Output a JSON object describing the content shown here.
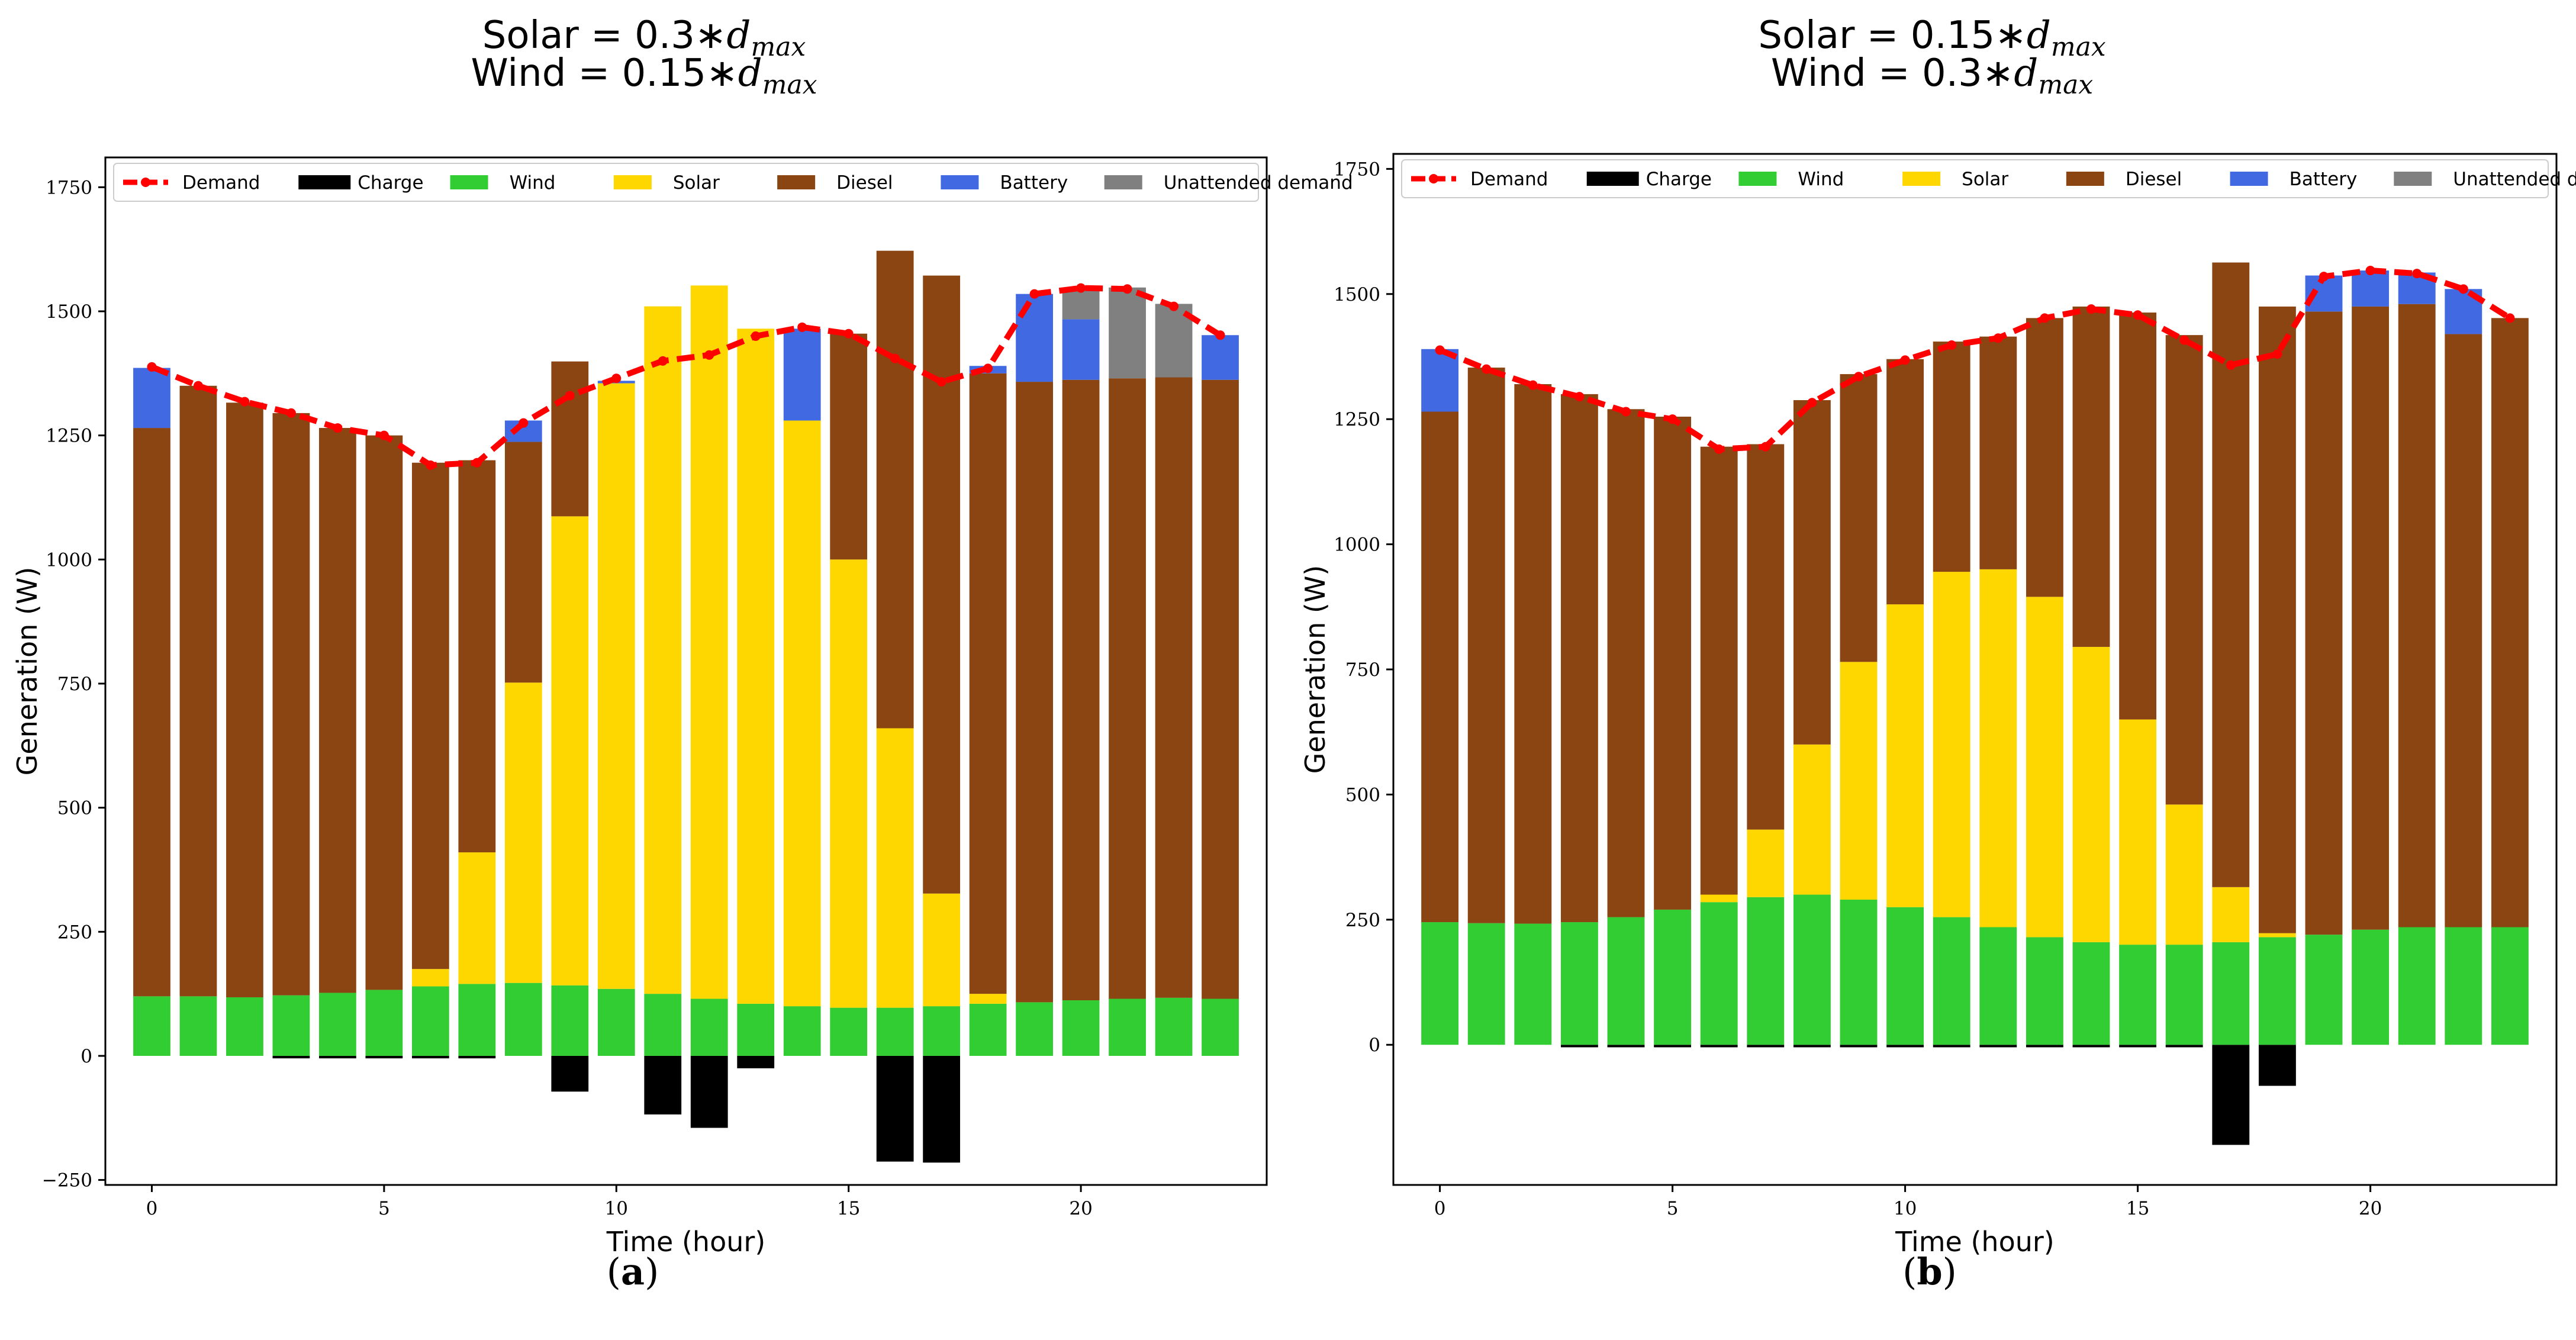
{
  "chart_data": [
    {
      "type": "bar",
      "stacked": true,
      "caption": "a",
      "title_lines": [
        "Solar = 0.3*d_max",
        "Wind = 0.15*d_max"
      ],
      "title_parts": [
        {
          "prefix": "Solar = 0.3∗",
          "sym": "d",
          "sub": "max"
        },
        {
          "prefix": "Wind = 0.15∗",
          "sym": "d",
          "sub": "max"
        }
      ],
      "xlabel": "Time (hour)",
      "ylabel": "Generation (W)",
      "xlim": [
        -1,
        24
      ],
      "ylim": [
        -260,
        1810
      ],
      "xticks": [
        0,
        5,
        10,
        15,
        20
      ],
      "yticks": [
        -250,
        0,
        250,
        500,
        750,
        1000,
        1250,
        1500,
        1750
      ],
      "x": [
        0,
        1,
        2,
        3,
        4,
        5,
        6,
        7,
        8,
        9,
        10,
        11,
        12,
        13,
        14,
        15,
        16,
        17,
        18,
        19,
        20,
        21,
        22,
        23
      ],
      "legend": {
        "position": "top",
        "ncol": 7
      },
      "series": [
        {
          "name": "Demand",
          "kind": "line",
          "color": "#ff0000",
          "values": [
            1388,
            1350,
            1318,
            1295,
            1265,
            1250,
            1190,
            1195,
            1275,
            1330,
            1365,
            1400,
            1412,
            1450,
            1468,
            1455,
            1405,
            1358,
            1385,
            1535,
            1547,
            1545,
            1510,
            1452
          ]
        },
        {
          "name": "Charge",
          "kind": "bar",
          "color": "#000000",
          "values": [
            0,
            0,
            0,
            -5,
            -5,
            -5,
            -5,
            -5,
            0,
            -72,
            0,
            -118,
            -145,
            -25,
            0,
            0,
            -213,
            -215,
            0,
            0,
            0,
            0,
            0,
            0
          ]
        },
        {
          "name": "Wind",
          "kind": "bar",
          "color": "#32cd32",
          "values": [
            120,
            120,
            118,
            122,
            127,
            133,
            140,
            145,
            147,
            142,
            135,
            125,
            115,
            105,
            100,
            97,
            97,
            100,
            105,
            108,
            112,
            115,
            117,
            115
          ]
        },
        {
          "name": "Solar",
          "kind": "bar",
          "color": "#ffd700",
          "values": [
            0,
            0,
            0,
            0,
            0,
            0,
            35,
            265,
            605,
            945,
            1220,
            1385,
            1437,
            1360,
            1180,
            903,
            563,
            227,
            20,
            0,
            0,
            0,
            0,
            0
          ]
        },
        {
          "name": "Diesel",
          "kind": "bar",
          "color": "#8b4513",
          "values": [
            1145,
            1230,
            1198,
            1173,
            1138,
            1117,
            1020,
            790,
            485,
            312,
            0,
            0,
            0,
            0,
            0,
            455,
            962,
            1245,
            1250,
            1250,
            1250,
            1250,
            1250,
            1247
          ]
        },
        {
          "name": "Battery",
          "kind": "bar",
          "color": "#4169e1",
          "values": [
            121,
            0,
            0,
            0,
            0,
            0,
            0,
            0,
            43,
            0,
            5,
            0,
            0,
            0,
            185,
            0,
            0,
            0,
            15,
            177,
            122,
            0,
            0,
            90
          ]
        },
        {
          "name": "Unattended demand",
          "kind": "bar",
          "color": "#808080",
          "values": [
            0,
            0,
            0,
            0,
            0,
            0,
            0,
            0,
            0,
            0,
            0,
            0,
            0,
            0,
            0,
            0,
            0,
            0,
            0,
            0,
            63,
            183,
            148,
            0
          ]
        }
      ]
    },
    {
      "type": "bar",
      "stacked": true,
      "caption": "b",
      "title_lines": [
        "Solar = 0.15*d_max",
        "Wind = 0.3*d_max"
      ],
      "title_parts": [
        {
          "prefix": "Solar = 0.15∗",
          "sym": "d",
          "sub": "max"
        },
        {
          "prefix": "Wind = 0.3∗",
          "sym": "d",
          "sub": "max"
        }
      ],
      "xlabel": "Time (hour)",
      "ylabel": "Generation (W)",
      "xlim": [
        -1,
        24
      ],
      "ylim": [
        -280,
        1780
      ],
      "xticks": [
        0,
        5,
        10,
        15,
        20
      ],
      "yticks": [
        0,
        250,
        500,
        750,
        1000,
        1250,
        1500,
        1750
      ],
      "x": [
        0,
        1,
        2,
        3,
        4,
        5,
        6,
        7,
        8,
        9,
        10,
        11,
        12,
        13,
        14,
        15,
        16,
        17,
        18,
        19,
        20,
        21,
        22,
        23
      ],
      "legend": {
        "position": "top",
        "ncol": 7
      },
      "series": [
        {
          "name": "Demand",
          "kind": "line",
          "color": "#ff0000",
          "values": [
            1388,
            1350,
            1318,
            1295,
            1265,
            1250,
            1190,
            1195,
            1283,
            1335,
            1368,
            1398,
            1412,
            1452,
            1470,
            1458,
            1408,
            1358,
            1380,
            1535,
            1547,
            1541,
            1510,
            1452
          ]
        },
        {
          "name": "Charge",
          "kind": "bar",
          "color": "#000000",
          "values": [
            0,
            0,
            0,
            -5,
            -5,
            -5,
            -5,
            -5,
            -5,
            -5,
            -5,
            -5,
            -5,
            -5,
            -5,
            -5,
            -5,
            -200,
            -82,
            0,
            0,
            0,
            0,
            0
          ]
        },
        {
          "name": "Wind",
          "kind": "bar",
          "color": "#32cd32",
          "values": [
            245,
            243,
            242,
            245,
            255,
            270,
            285,
            295,
            300,
            290,
            275,
            255,
            235,
            215,
            205,
            200,
            200,
            205,
            215,
            220,
            230,
            235,
            235,
            235
          ]
        },
        {
          "name": "Solar",
          "kind": "bar",
          "color": "#ffd700",
          "values": [
            0,
            0,
            0,
            0,
            0,
            0,
            15,
            135,
            300,
            475,
            605,
            690,
            715,
            680,
            590,
            450,
            280,
            110,
            8,
            0,
            0,
            0,
            0,
            0
          ]
        },
        {
          "name": "Diesel",
          "kind": "bar",
          "color": "#8b4513",
          "values": [
            1020,
            1110,
            1078,
            1055,
            1015,
            985,
            895,
            770,
            688,
            575,
            490,
            460,
            465,
            557,
            680,
            813,
            938,
            1248,
            1252,
            1245,
            1245,
            1245,
            1185,
            1217
          ]
        },
        {
          "name": "Battery",
          "kind": "bar",
          "color": "#4169e1",
          "values": [
            125,
            0,
            0,
            0,
            0,
            0,
            0,
            0,
            0,
            0,
            0,
            0,
            0,
            0,
            0,
            0,
            0,
            0,
            0,
            72,
            72,
            63,
            90,
            0
          ]
        },
        {
          "name": "Unattended demand",
          "kind": "bar",
          "color": "#808080",
          "values": [
            0,
            0,
            0,
            0,
            0,
            0,
            0,
            0,
            0,
            0,
            0,
            0,
            0,
            0,
            0,
            0,
            0,
            0,
            0,
            0,
            0,
            0,
            0,
            0
          ]
        }
      ]
    }
  ]
}
